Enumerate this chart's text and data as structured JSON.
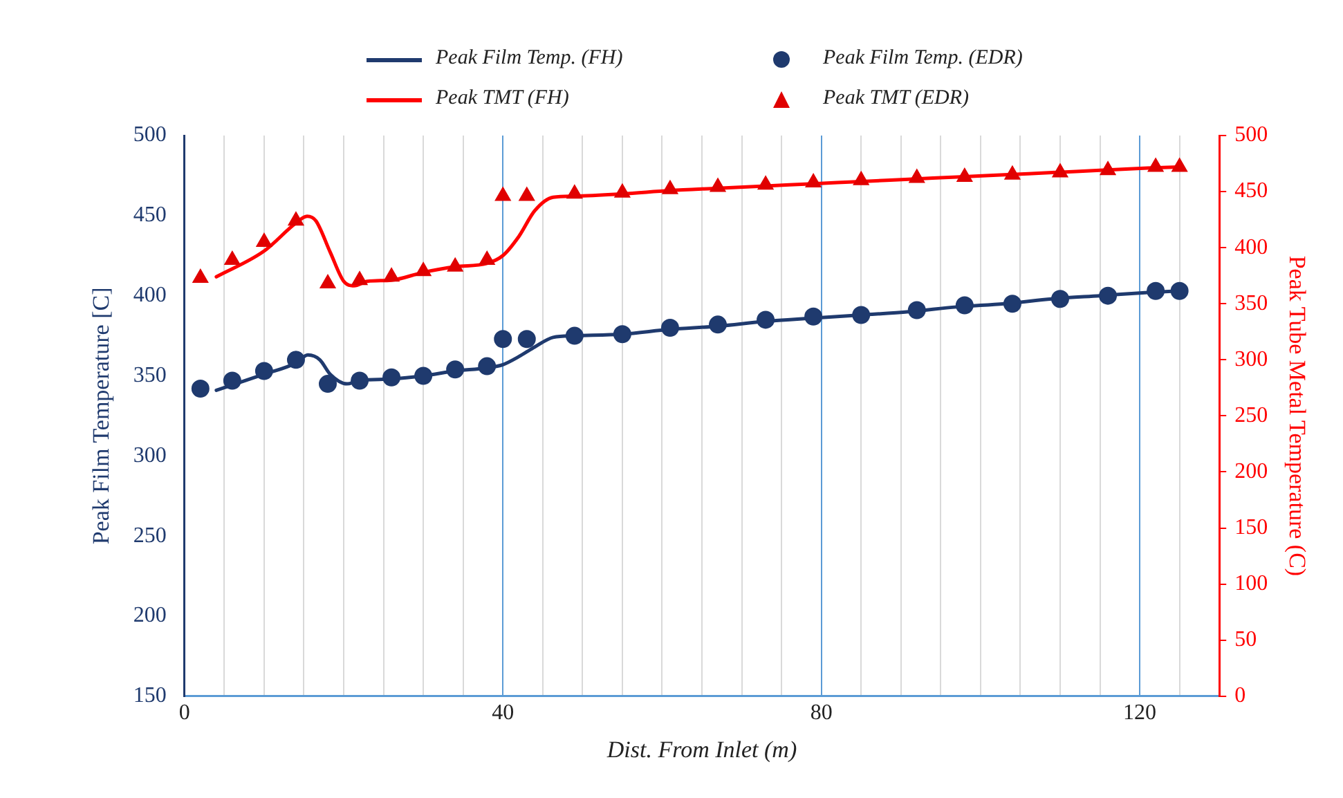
{
  "chart_data": {
    "type": "line",
    "xlabel": "Dist. From Inlet (m)",
    "ylabel": "Peak Film Temperature [C]",
    "y2label": "Peak Tube Metal Temperature (C)",
    "xlim": [
      0,
      130
    ],
    "xticks": [
      0,
      {
        "value": 5,
        "label": null
      },
      {
        "value": 10,
        "label": null
      },
      {
        "value": 15,
        "label": null
      },
      {
        "value": 20,
        "label": null
      },
      {
        "value": 25,
        "label": null
      },
      {
        "value": 30,
        "label": null
      },
      {
        "value": 35,
        "label": null
      },
      40,
      {
        "value": 45,
        "label": null
      },
      {
        "value": 50,
        "label": null
      },
      {
        "value": 55,
        "label": null
      },
      {
        "value": 60,
        "label": null
      },
      {
        "value": 65,
        "label": null
      },
      {
        "value": 70,
        "label": null
      },
      {
        "value": 75,
        "label": null
      },
      80,
      {
        "value": 85,
        "label": null
      },
      {
        "value": 90,
        "label": null
      },
      {
        "value": 95,
        "label": null
      },
      {
        "value": 100,
        "label": null
      },
      {
        "value": 105,
        "label": null
      },
      {
        "value": 110,
        "label": null
      },
      {
        "value": 115,
        "label": null
      },
      120,
      {
        "value": 125,
        "label": null
      }
    ],
    "ylim": [
      150,
      500
    ],
    "yticks": [
      150,
      200,
      250,
      300,
      350,
      400,
      450,
      500
    ],
    "y2lim": [
      0,
      500
    ],
    "y2ticks": [
      0,
      50,
      100,
      150,
      200,
      250,
      300,
      350,
      400,
      450,
      500
    ],
    "grid": "x",
    "legend": "top",
    "series": [
      {
        "name": "Peak Film Temp. (FH)",
        "type": "line",
        "marker": "none",
        "color": "#1f3a6e",
        "x": [
          4,
          10,
          14,
          15.5,
          17,
          18.3,
          20.4,
          22,
          26,
          30,
          34,
          38,
          40,
          42,
          44,
          46.3,
          49,
          55,
          61,
          67,
          73,
          79,
          85,
          91,
          97,
          103,
          109,
          115,
          121,
          125
        ],
        "values": [
          341,
          351,
          358,
          363,
          360,
          351,
          345,
          347,
          348,
          350,
          353,
          355,
          357,
          362,
          368,
          374,
          375,
          376,
          379,
          381,
          384,
          386,
          388,
          390,
          393,
          395,
          398,
          400,
          402,
          403
        ]
      },
      {
        "name": "Peak Film Temp. (EDR)",
        "type": "scatter",
        "marker": "circle",
        "color": "#1f3a6e",
        "x": [
          2,
          6,
          10,
          14,
          18,
          22,
          26,
          30,
          34,
          38,
          40,
          43,
          49,
          55,
          61,
          67,
          73,
          79,
          85,
          92,
          98,
          104,
          110,
          116,
          122,
          125
        ],
        "values": [
          342,
          347,
          353,
          360,
          345,
          347,
          349,
          350,
          354,
          356,
          373,
          373,
          375,
          376,
          380,
          382,
          385,
          387,
          388,
          391,
          394,
          395,
          398,
          400,
          403,
          403
        ]
      },
      {
        "name": "Peak TMT (FH)",
        "type": "line",
        "marker": "none",
        "color": "#ff0000",
        "axis": "y2",
        "x": [
          4,
          10,
          14,
          15.4,
          16.5,
          18.3,
          20,
          21.3,
          23,
          26,
          30,
          34,
          38,
          40,
          42,
          44,
          46.3,
          49,
          55,
          61,
          67,
          73,
          79,
          85,
          91,
          97,
          103,
          109,
          115,
          121,
          125
        ],
        "values": [
          374,
          397,
          422,
          428,
          424,
          396,
          370,
          366,
          370,
          371,
          378,
          383,
          386,
          393,
          410,
          433,
          445,
          446,
          448,
          451,
          453,
          455,
          457,
          459,
          461,
          463,
          465,
          467,
          469,
          471,
          472
        ]
      },
      {
        "name": "Peak TMT (EDR)",
        "type": "scatter",
        "marker": "triangle",
        "color": "#e00000",
        "axis": "y2",
        "x": [
          2,
          6,
          10,
          14,
          18,
          22,
          26,
          30,
          34,
          38,
          40,
          43,
          49,
          55,
          61,
          67,
          73,
          79,
          85,
          92,
          98,
          104,
          110,
          116,
          122,
          125
        ],
        "values": [
          373,
          389,
          405,
          424,
          368,
          371,
          374,
          379,
          383,
          389,
          446,
          446,
          448,
          449,
          452,
          454,
          456,
          458,
          460,
          462,
          463,
          465,
          467,
          469,
          472,
          472
        ]
      }
    ]
  }
}
